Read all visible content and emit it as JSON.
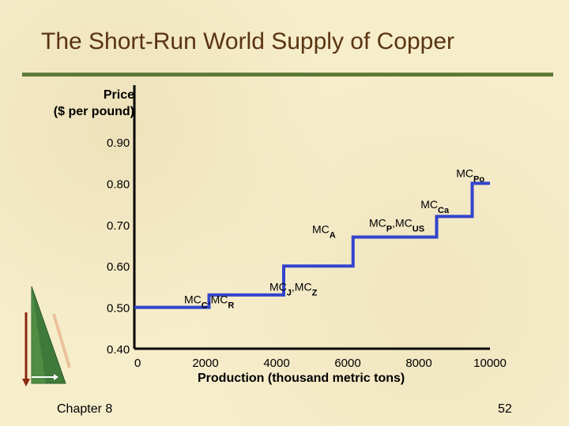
{
  "slide": {
    "title": "The Short-Run World Supply of Copper",
    "footer": "Chapter 8",
    "page_number": "52"
  },
  "colors": {
    "title": "#5a3412",
    "rule": "#5d7a38",
    "supply_line": "#3344cc",
    "axis": "#000000"
  },
  "chart_data": {
    "type": "line",
    "ylabel_lines": [
      "Price",
      "($ per pound)"
    ],
    "xlabel": "Production (thousand metric tons)",
    "x_ticks": [
      "0",
      "2000",
      "4000",
      "6000",
      "8000",
      "10000"
    ],
    "y_ticks": [
      "0.40",
      "0.50",
      "0.60",
      "0.70",
      "0.80",
      "0.90"
    ],
    "xlim": [
      0,
      10000
    ],
    "ylim": [
      0.4,
      0.9
    ],
    "series": [
      {
        "x": [
          0,
          2100,
          2100,
          4200,
          4200,
          6150,
          6150,
          8500,
          8500,
          9500,
          9500,
          10000
        ],
        "y": [
          0.5,
          0.5,
          0.53,
          0.53,
          0.6,
          0.6,
          0.67,
          0.67,
          0.72,
          0.72,
          0.8,
          0.8
        ]
      }
    ],
    "annotations": [
      {
        "base": "MC",
        "sub": "C",
        "sep": ",",
        "base2": "MC",
        "sub2": "R",
        "x": 1400,
        "y": 0.51
      },
      {
        "base": "MC",
        "sub": "J",
        "sep": ",",
        "base2": "MC",
        "sub2": "Z",
        "x": 3800,
        "y": 0.54
      },
      {
        "base": "MC",
        "sub": "A",
        "x": 5000,
        "y": 0.68
      },
      {
        "base": "MC",
        "sub": "P",
        "sep": ",",
        "base2": "MC",
        "sub2": "US",
        "x": 6600,
        "y": 0.695
      },
      {
        "base": "MC",
        "sub": "Ca",
        "x": 8050,
        "y": 0.74
      },
      {
        "base": "MC",
        "sub": "Po",
        "x": 9050,
        "y": 0.815
      }
    ]
  }
}
